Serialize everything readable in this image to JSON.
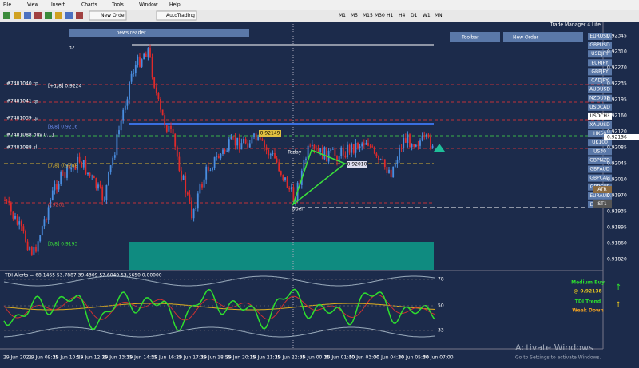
{
  "menu": [
    "File",
    "View",
    "Insert",
    "Charts",
    "Tools",
    "Window",
    "Help"
  ],
  "toolbar": {
    "new_order": "New Order",
    "auto_trading": "AutoTrading",
    "timeframes": [
      "M1",
      "M5",
      "M15",
      "M30",
      "H1",
      "H4",
      "D1",
      "W1",
      "MN"
    ]
  },
  "chart": {
    "plugin": "Trade Manager 4 Lite",
    "news_reader": "news reader",
    "count": "32",
    "order_labels": [
      "#7481040 tp",
      "#7481041 tp",
      "#7481039 tp",
      "#7481088 buy 0.11",
      "#7481088 sl"
    ],
    "level_labels": [
      "[+1/8] 0.9224",
      "[8/8] 0.9216",
      "[7/8] 0.9208",
      "0.9201",
      "[0/8] 0.9193"
    ],
    "price_tag": "0.92149",
    "today": "Today",
    "mid_price": "0.92010",
    "open": "Open",
    "panel_buttons": [
      "Toolbar",
      "New Order"
    ],
    "symbols": [
      "EURUSD",
      "GBPUSD",
      "USDJPY",
      "EURJPY",
      "GBPJPY",
      "CADJPY",
      "AUDUSD",
      "NZDUSD",
      "USDCAD",
      "USDCHF",
      "XAUUSD",
      "HK50",
      "UK100",
      "US30",
      "GBPNZD",
      "GBPAUD",
      "GBPCAD",
      "GBPCHF",
      "EURAUD",
      "EURGBP"
    ],
    "indicator_buttons": [
      "ATR",
      "ST1"
    ],
    "price_axis": [
      "0.92345",
      "0.92310",
      "0.92270",
      "0.92235",
      "0.92195",
      "0.92160",
      "0.92120",
      "0.92085",
      "0.92045",
      "0.92010",
      "0.91970",
      "0.91935",
      "0.91895",
      "0.91860",
      "0.91820"
    ],
    "current_price": "0.92136"
  },
  "indicator": {
    "title": "TDI Alerts = 68.1465 53.7887 39.4309 57.6049 53.5650 0.00000",
    "levels": [
      "78",
      "50",
      "33"
    ],
    "signal": "Medium Buy",
    "signal_price": "@ 0.92138",
    "trend": "TDI Trend",
    "trend_value": "Weak Down"
  },
  "time_axis": [
    "29 Jun 2021",
    "29 Jun 09:35",
    "29 Jun 10:55",
    "29 Jun 12:15",
    "29 Jun 13:35",
    "29 Jun 14:55",
    "29 Jun 16:15",
    "29 Jun 17:35",
    "29 Jun 18:55",
    "29 Jun 20:15",
    "29 Jun 21:35",
    "29 Jun 22:55",
    "30 Jun 00:15",
    "30 Jun 01:40",
    "30 Jun 03:00",
    "30 Jun 04:20",
    "30 Jun 05:40",
    "30 Jun 07:00"
  ],
  "watermark": {
    "title": "Activate Windows",
    "subtitle": "Go to Settings to activate Windows."
  }
}
